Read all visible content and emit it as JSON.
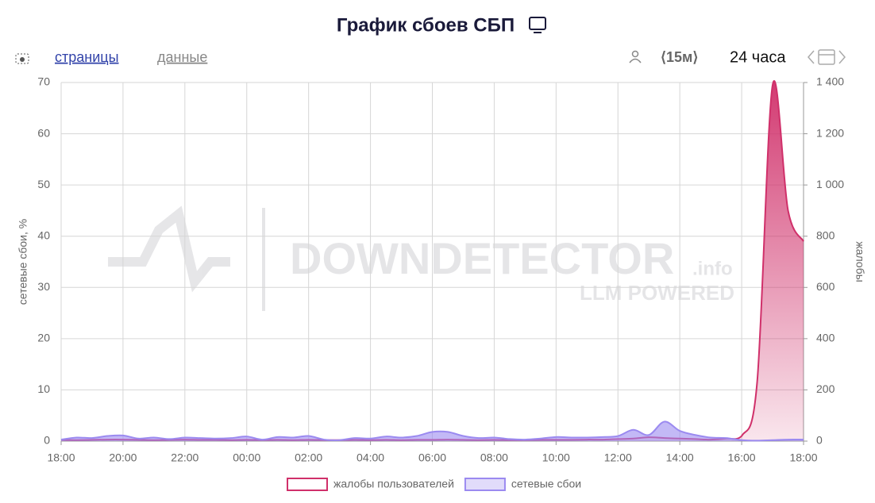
{
  "toolbar": {
    "pages": "страницы",
    "data": "данные",
    "interval": "⟨15м⟩",
    "period": "24 часа"
  },
  "watermark": {
    "brand": "DOWNDETECTOR",
    "suffix": ".info",
    "tagline": "LLM POWERED"
  },
  "chart_data": {
    "type": "area",
    "title": "График сбоев СБП",
    "y_label": "сетевые сбои, %",
    "y2_label": "жалобы",
    "categories": [
      "18:00",
      null,
      null,
      null,
      "20:00",
      null,
      null,
      null,
      "22:00",
      null,
      null,
      null,
      "00:00",
      null,
      null,
      null,
      "02:00",
      null,
      null,
      null,
      "04:00",
      null,
      null,
      null,
      "06:00",
      null,
      null,
      null,
      "08:00",
      null,
      null,
      null,
      "10:00",
      null,
      null,
      null,
      "12:00",
      null,
      null,
      null,
      "14:00",
      null,
      null,
      null,
      "16:00",
      null,
      null,
      null,
      "18:00"
    ],
    "series": [
      {
        "name": "жалобы пользователей",
        "color": "#d0306a",
        "axis": "y2",
        "values": [
          5,
          4,
          5,
          6,
          6,
          5,
          4,
          5,
          6,
          5,
          5,
          4,
          5,
          4,
          5,
          4,
          5,
          4,
          4,
          5,
          4,
          5,
          4,
          5,
          5,
          6,
          5,
          4,
          5,
          4,
          4,
          5,
          5,
          5,
          6,
          6,
          8,
          10,
          15,
          12,
          10,
          8,
          6,
          10,
          20,
          230,
          1390,
          900,
          780
        ]
      },
      {
        "name": "сетевые сбои",
        "color": "#9b8af0",
        "axis": "y",
        "values": [
          0.3,
          0.7,
          0.6,
          1.0,
          1.1,
          0.5,
          0.7,
          0.4,
          0.7,
          0.6,
          0.5,
          0.6,
          0.9,
          0.3,
          0.8,
          0.7,
          1.0,
          0.3,
          0.2,
          0.6,
          0.5,
          0.9,
          0.7,
          1.0,
          1.8,
          1.8,
          1.0,
          0.6,
          0.7,
          0.4,
          0.3,
          0.5,
          0.8,
          0.7,
          0.7,
          0.8,
          1.0,
          2.2,
          1.2,
          3.8,
          2.0,
          1.2,
          0.7,
          0.6,
          0.2,
          0.1,
          0.2,
          0.3,
          0.3
        ]
      }
    ],
    "ylim": [
      0,
      70
    ],
    "yticks": [
      0,
      10,
      20,
      30,
      40,
      50,
      60,
      70
    ],
    "y2lim": [
      0,
      1400
    ],
    "y2ticks": [
      0,
      200,
      400,
      600,
      800,
      {
        "value": 1000,
        "label": "1 000"
      },
      {
        "value": 1200,
        "label": "1 200"
      },
      {
        "value": 1400,
        "label": "1 400"
      }
    ],
    "grid": true
  }
}
